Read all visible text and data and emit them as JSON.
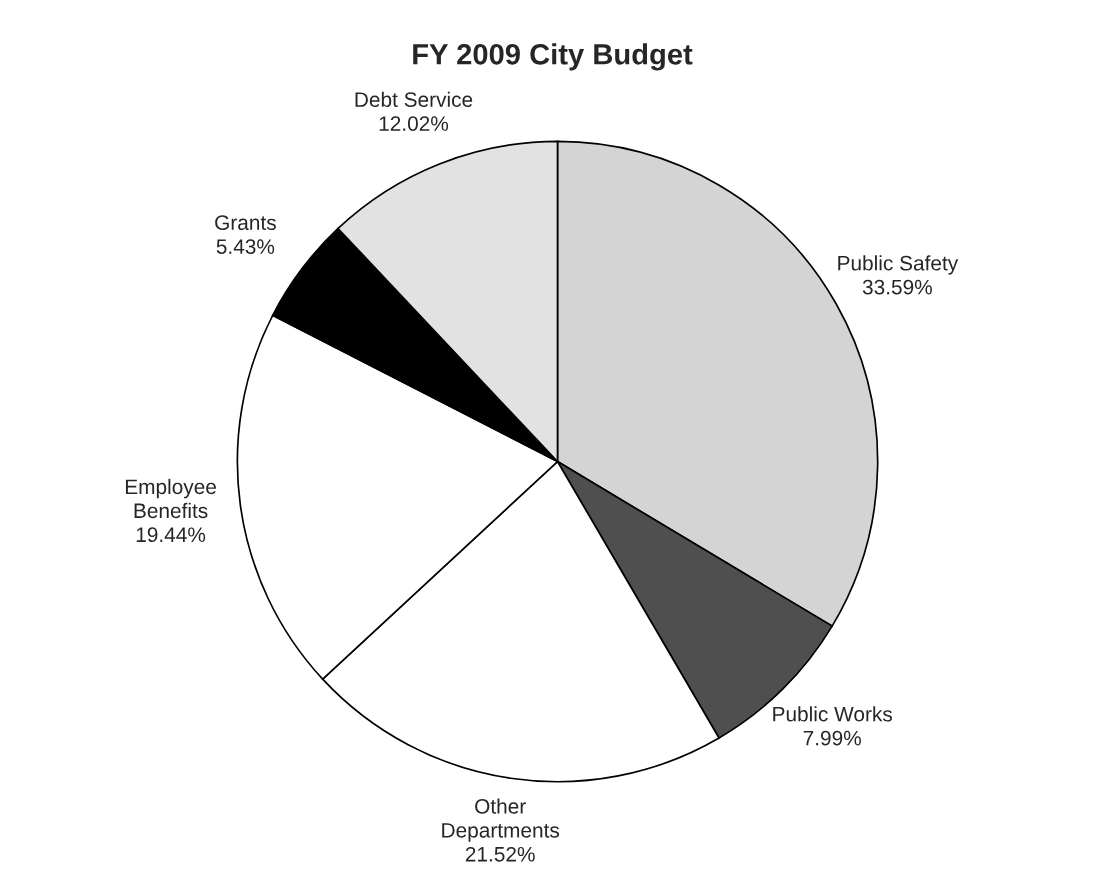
{
  "chart_data": {
    "type": "pie",
    "title": "FY 2009 City Budget",
    "categories": [
      "Public Safety",
      "Public Works",
      "Other\nDepartments",
      "Employee\nBenefits",
      "Grants",
      "Debt Service"
    ],
    "values": [
      33.59,
      7.99,
      21.52,
      19.44,
      5.43,
      12.02
    ],
    "value_labels": [
      "33.59%",
      "7.99%",
      "21.52%",
      "19.44%",
      "5.43%",
      "12.02%"
    ],
    "colors": [
      "#d4d4d4",
      "#4f4f4f",
      "#ffffff",
      "#ffffff",
      "#000000",
      "#e2e2e2"
    ],
    "legend": false
  }
}
